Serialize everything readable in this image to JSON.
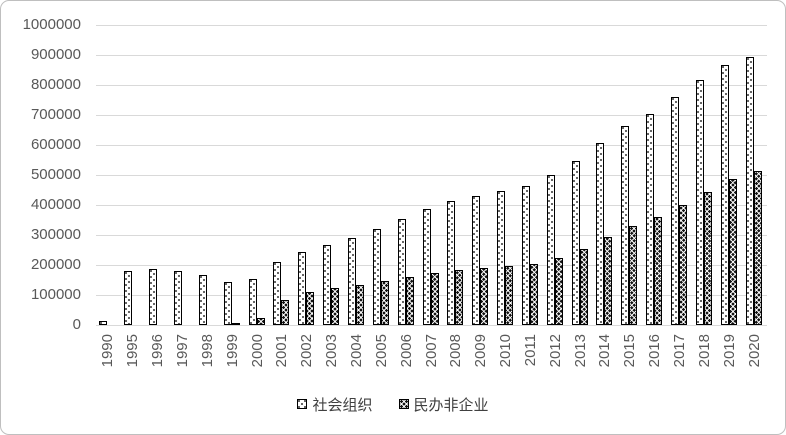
{
  "chart_data": {
    "type": "bar",
    "title": "",
    "categories": [
      "1990",
      "1995",
      "1996",
      "1997",
      "1998",
      "1999",
      "2000",
      "2001",
      "2002",
      "2003",
      "2004",
      "2005",
      "2006",
      "2007",
      "2008",
      "2009",
      "2010",
      "2011",
      "2012",
      "2013",
      "2014",
      "2015",
      "2016",
      "2017",
      "2018",
      "2019",
      "2020"
    ],
    "series": [
      {
        "name": "社会组织",
        "style": "dotted-white",
        "values": [
          13000,
          181000,
          187000,
          181000,
          166000,
          143000,
          153000,
          211000,
          245000,
          267000,
          289000,
          320000,
          354000,
          387000,
          414000,
          431000,
          446000,
          462000,
          499000,
          547000,
          606000,
          662000,
          702000,
          761000,
          817000,
          866000,
          894000
        ]
      },
      {
        "name": "民办非企业",
        "style": "crosshatch-dark",
        "values": [
          0,
          0,
          0,
          0,
          0,
          6000,
          23000,
          82000,
          111000,
          124000,
          135000,
          148000,
          161000,
          174000,
          182000,
          190000,
          198000,
          204000,
          225000,
          255000,
          292000,
          329000,
          361000,
          400000,
          444000,
          487000,
          513000
        ]
      }
    ],
    "ylim": [
      0,
      1000000
    ],
    "ytick_step": 100000,
    "ytick_labels": [
      "1000000",
      "900000",
      "800000",
      "700000",
      "600000",
      "500000",
      "400000",
      "300000",
      "200000",
      "100000",
      "0"
    ],
    "xlabel": "",
    "ylabel": "",
    "grid": true,
    "legend_position": "bottom"
  },
  "colors": {
    "background": "#ffffff",
    "frame_border": "#bfbfbf",
    "gridline": "#d9d9d9",
    "axis_label": "#595959",
    "legend_text": "#404040",
    "bar_border": "#000000",
    "series1_fill": "#ffffff",
    "series2_fill": "#141414"
  }
}
